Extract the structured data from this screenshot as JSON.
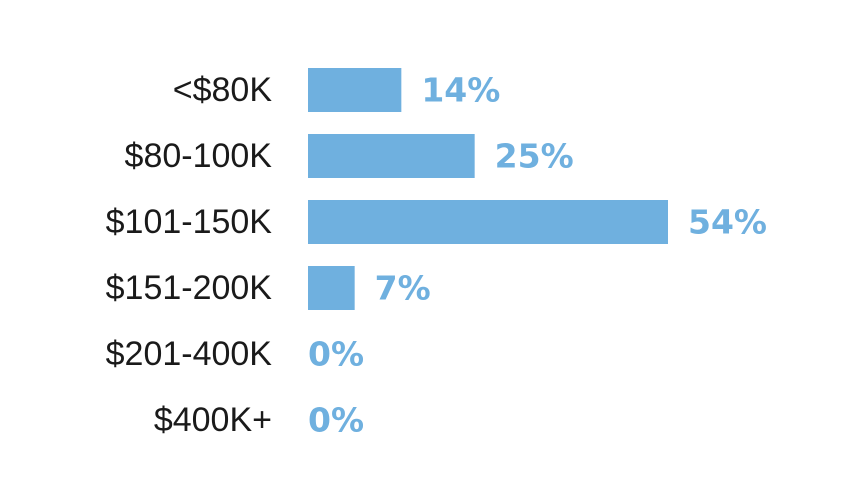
{
  "chart_data": {
    "type": "bar",
    "orientation": "horizontal",
    "categories": [
      "<$80K",
      "$80-100K",
      "$101-150K",
      "$151-200K",
      "$201-400K",
      "$400K+"
    ],
    "values": [
      14,
      25,
      54,
      7,
      0,
      0
    ],
    "value_labels": [
      "14%",
      "25%",
      "54%",
      "7%",
      "0%",
      "0%"
    ],
    "title": "",
    "xlabel": "",
    "ylabel": "",
    "xlim": [
      0,
      54
    ],
    "grid": false,
    "legend": "none",
    "bar_color": "#6fb0df"
  }
}
